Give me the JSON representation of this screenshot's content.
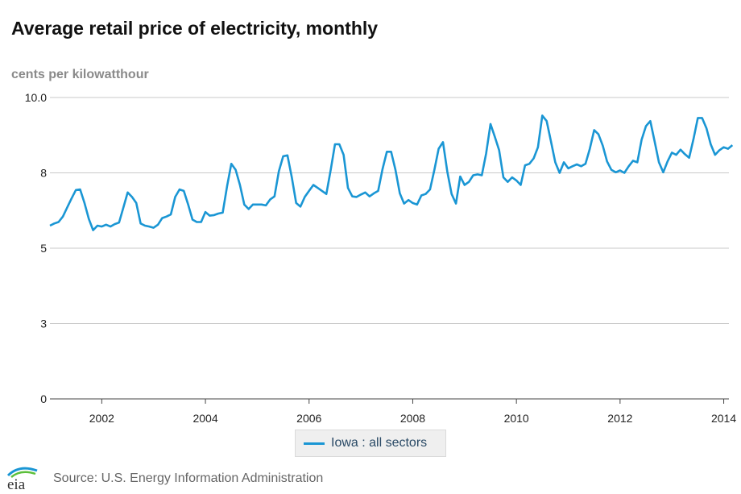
{
  "header": {
    "title": "Average retail price of electricity, monthly",
    "units": "cents per kilowatthour"
  },
  "legend": {
    "label": "Iowa : all sectors"
  },
  "footer": {
    "source": "Source: U.S. Energy Information Administration",
    "logo_text": "eia"
  },
  "colors": {
    "series": "#1a96d4",
    "grid": "#c8c8c8",
    "axis": "#444444"
  },
  "chart_data": {
    "type": "line",
    "title": "Average retail price of electricity, monthly",
    "ylabel": "cents per kilowatthour",
    "xlabel": "",
    "ylim": [
      0,
      10
    ],
    "xlim": [
      2001.0,
      2014.1
    ],
    "y_ticks": [
      0,
      2.5,
      5,
      7.5,
      10
    ],
    "y_tick_labels": [
      "0",
      "3",
      "5",
      "8",
      "10.0"
    ],
    "x_ticks": [
      2002,
      2004,
      2006,
      2008,
      2010,
      2012,
      2014
    ],
    "x_tick_labels": [
      "2002",
      "2004",
      "2006",
      "2008",
      "2010",
      "2012",
      "2014"
    ],
    "grid": true,
    "legend_position": "bottom-center",
    "series": [
      {
        "name": "Iowa : all sectors",
        "x_start": 2001.0,
        "x_step": 0.08333,
        "values": [
          5.75,
          5.82,
          5.87,
          6.05,
          6.35,
          6.65,
          6.93,
          6.95,
          6.5,
          5.97,
          5.6,
          5.75,
          5.72,
          5.78,
          5.72,
          5.8,
          5.85,
          6.35,
          6.85,
          6.7,
          6.5,
          5.82,
          5.75,
          5.72,
          5.68,
          5.78,
          6.0,
          6.05,
          6.12,
          6.7,
          6.95,
          6.9,
          6.45,
          5.95,
          5.87,
          5.87,
          6.2,
          6.08,
          6.1,
          6.15,
          6.18,
          7.05,
          7.8,
          7.6,
          7.1,
          6.45,
          6.3,
          6.45,
          6.45,
          6.45,
          6.42,
          6.62,
          6.72,
          7.55,
          8.05,
          8.08,
          7.35,
          6.5,
          6.38,
          6.7,
          6.9,
          7.1,
          7.0,
          6.9,
          6.8,
          7.6,
          8.45,
          8.45,
          8.1,
          7.0,
          6.72,
          6.7,
          6.78,
          6.85,
          6.72,
          6.82,
          6.9,
          7.62,
          8.2,
          8.2,
          7.6,
          6.82,
          6.48,
          6.6,
          6.5,
          6.45,
          6.75,
          6.8,
          6.95,
          7.6,
          8.3,
          8.52,
          7.55,
          6.8,
          6.48,
          7.38,
          7.1,
          7.2,
          7.42,
          7.45,
          7.42,
          8.15,
          9.12,
          8.7,
          8.25,
          7.35,
          7.2,
          7.35,
          7.25,
          7.1,
          7.75,
          7.8,
          7.98,
          8.35,
          9.4,
          9.22,
          8.55,
          7.85,
          7.5,
          7.85,
          7.65,
          7.72,
          7.78,
          7.72,
          7.8,
          8.3,
          8.92,
          8.78,
          8.4,
          7.88,
          7.6,
          7.52,
          7.58,
          7.5,
          7.72,
          7.9,
          7.85,
          8.6,
          9.05,
          9.22,
          8.55,
          7.85,
          7.52,
          7.88,
          8.17,
          8.1,
          8.27,
          8.12,
          8.0,
          8.62,
          9.32,
          9.32,
          8.98,
          8.45,
          8.1,
          8.25,
          8.35,
          8.3,
          8.42
        ]
      }
    ]
  }
}
